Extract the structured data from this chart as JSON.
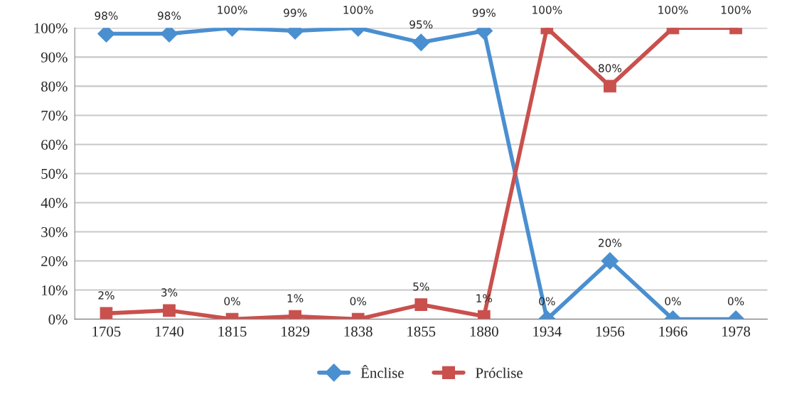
{
  "chart_data": {
    "type": "line",
    "categories": [
      "1705",
      "1740",
      "1815",
      "1829",
      "1838",
      "1855",
      "1880",
      "1934",
      "1956",
      "1966",
      "1978"
    ],
    "series": [
      {
        "name": "Ênclise",
        "color": "#4a8fd0",
        "marker": "diamond",
        "values": [
          98,
          98,
          100,
          99,
          100,
          95,
          99,
          0,
          20,
          0,
          0
        ],
        "value_labels": [
          "98%",
          "98%",
          "100%",
          "99%",
          "100%",
          "95%",
          "99%",
          "0%",
          "20%",
          "0%",
          "0%"
        ]
      },
      {
        "name": "Próclise",
        "color": "#c9504d",
        "marker": "square",
        "values": [
          2,
          3,
          0,
          1,
          0,
          5,
          1,
          100,
          80,
          100,
          100
        ],
        "value_labels": [
          "2%",
          "3%",
          "0%",
          "1%",
          "0%",
          "5%",
          "1%",
          "100%",
          "80%",
          "100%",
          "100%"
        ]
      }
    ],
    "ylim": [
      0,
      100
    ],
    "yticks": [
      {
        "value": 0,
        "label": "0%"
      },
      {
        "value": 10,
        "label": "10%"
      },
      {
        "value": 20,
        "label": "20%"
      },
      {
        "value": 30,
        "label": "30%"
      },
      {
        "value": 40,
        "label": "40%"
      },
      {
        "value": 50,
        "label": "50%"
      },
      {
        "value": 60,
        "label": "60%"
      },
      {
        "value": 70,
        "label": "70%"
      },
      {
        "value": 80,
        "label": "80%"
      },
      {
        "value": 90,
        "label": "90%"
      },
      {
        "value": 100,
        "label": "100%"
      }
    ],
    "grid": "y",
    "legend": "bottom",
    "line_style": "solid"
  }
}
